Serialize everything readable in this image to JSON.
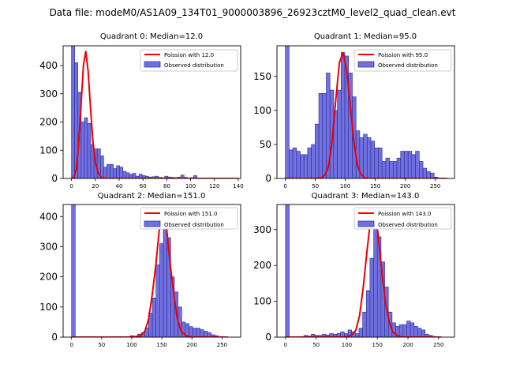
{
  "suptitle": "Data file: modeM0/AS1A09_134T01_9000003896_26923cztM0_level2_quad_clean.evt",
  "colors": {
    "bars": "#7070e0",
    "bar_edge": "#2a2a90",
    "poisson": "#ee0000"
  },
  "chart_data": [
    {
      "type": "bar",
      "title": "Quadrant 0: Median=12.0",
      "xlim": [
        -7,
        142
      ],
      "ylim": [
        0,
        470
      ],
      "xticks": [
        0,
        20,
        40,
        60,
        80,
        100,
        120,
        140
      ],
      "yticks": [
        0,
        100,
        200,
        300,
        400
      ],
      "bin_width": 2.7,
      "hist_x": [
        0,
        2.7,
        5.4,
        8.1,
        10.8,
        13.5,
        16.2,
        18.9,
        21.6,
        24.3,
        27,
        29.7,
        32.4,
        35.1,
        37.8,
        40.5,
        43.2,
        45.9,
        48.6,
        51.3,
        54,
        56.7,
        59.4,
        62.1,
        64.8,
        67.5,
        70.2,
        72.9,
        75.6,
        78.3,
        81,
        83.7,
        86.4,
        89.1,
        91.8,
        94.5,
        97.2,
        99.9,
        102.6,
        105.3,
        108,
        110.7,
        113.4,
        116.1,
        118.8,
        121.5,
        124.2,
        127,
        129.6,
        132.3,
        135
      ],
      "hist_y": [
        470,
        410,
        305,
        200,
        215,
        195,
        120,
        105,
        105,
        80,
        40,
        50,
        50,
        35,
        45,
        40,
        25,
        20,
        15,
        18,
        8,
        15,
        10,
        8,
        5,
        6,
        8,
        4,
        3,
        8,
        5,
        4,
        3,
        5,
        12,
        4,
        2,
        3,
        10,
        2,
        1,
        2,
        1,
        1,
        1,
        1,
        0,
        1,
        0,
        1,
        0
      ],
      "poisson_label": "Poission with 12.0",
      "poisson_x": [
        0,
        2,
        4,
        6,
        8,
        10,
        12,
        14,
        16,
        18,
        20,
        22,
        24,
        26,
        30,
        40,
        60,
        80,
        100,
        120,
        140
      ],
      "poisson_y": [
        0,
        5,
        30,
        120,
        260,
        400,
        450,
        380,
        250,
        130,
        60,
        25,
        8,
        2,
        0,
        0,
        0,
        0,
        0,
        0,
        0
      ],
      "observed_label": "Observed distribution"
    },
    {
      "type": "bar",
      "title": "Quadrant 1: Median=95.0",
      "xlim": [
        -14,
        282
      ],
      "ylim": [
        0,
        195
      ],
      "xticks": [
        0,
        50,
        100,
        150,
        200,
        250
      ],
      "yticks": [
        0,
        50,
        100,
        150
      ],
      "bin_width": 6.2,
      "hist_x": [
        0,
        6.2,
        12.4,
        18.6,
        24.8,
        31,
        37.2,
        43.4,
        49.6,
        55.8,
        62,
        68.2,
        74.4,
        80.6,
        86.8,
        93,
        99.2,
        105.4,
        111.6,
        117.8,
        124,
        130.2,
        136.4,
        142.6,
        148.8,
        155,
        161.2,
        167.4,
        173.6,
        179.8,
        186,
        192.2,
        198.4,
        204.6,
        210.8,
        217,
        223.2,
        229.4,
        235.6,
        241.8,
        248,
        254.2
      ],
      "hist_y": [
        195,
        42,
        45,
        40,
        35,
        35,
        45,
        50,
        80,
        125,
        125,
        155,
        130,
        100,
        130,
        185,
        180,
        155,
        120,
        70,
        60,
        65,
        60,
        55,
        45,
        45,
        25,
        30,
        25,
        25,
        30,
        40,
        40,
        40,
        35,
        40,
        25,
        15,
        10,
        8,
        2,
        0
      ],
      "poisson_label": "Poission with 95.0",
      "poisson_x": [
        0,
        50,
        60,
        66,
        72,
        78,
        84,
        90,
        96,
        102,
        108,
        114,
        120,
        126,
        132,
        140,
        150,
        200,
        270
      ],
      "poisson_y": [
        0,
        0,
        1,
        5,
        18,
        55,
        115,
        170,
        185,
        160,
        110,
        55,
        20,
        6,
        1,
        0,
        0,
        0,
        0
      ],
      "observed_label": "Observed distribution"
    },
    {
      "type": "bar",
      "title": "Quadrant 2: Median=151.0",
      "xlim": [
        -14,
        281
      ],
      "ylim": [
        0,
        440
      ],
      "xticks": [
        0,
        50,
        100,
        150,
        200,
        250
      ],
      "yticks": [
        0,
        100,
        200,
        300,
        400
      ],
      "bin_width": 6.1,
      "hist_x": [
        0,
        6.1,
        12.2,
        18.3,
        24.4,
        30.5,
        36.6,
        42.7,
        48.8,
        54.9,
        61,
        67.1,
        73.2,
        79.3,
        85.4,
        91.5,
        97.6,
        103.7,
        109.8,
        115.9,
        122,
        128.1,
        134.2,
        140.3,
        146.4,
        152.5,
        158.6,
        164.7,
        170.8,
        176.9,
        183,
        189.1,
        195.2,
        201.3,
        207.4,
        213.5,
        219.6,
        225.7,
        231.8,
        237.9,
        244,
        250.1,
        256.2,
        262.3
      ],
      "hist_y": [
        440,
        0,
        0,
        0,
        0,
        0,
        0,
        0,
        0,
        0,
        0,
        0,
        0,
        0,
        0,
        0,
        5,
        3,
        10,
        15,
        30,
        80,
        130,
        240,
        310,
        410,
        330,
        200,
        150,
        100,
        50,
        45,
        35,
        30,
        30,
        25,
        20,
        15,
        8,
        5,
        2,
        1,
        0,
        0
      ],
      "poisson_label": "Poission with 151.0",
      "poisson_x": [
        0,
        100,
        115,
        122,
        128,
        134,
        140,
        146,
        152,
        158,
        164,
        170,
        176,
        182,
        190,
        200,
        260
      ],
      "poisson_y": [
        0,
        0,
        5,
        20,
        60,
        140,
        240,
        360,
        420,
        360,
        240,
        140,
        60,
        20,
        5,
        0,
        0
      ],
      "observed_label": "Observed distribution"
    },
    {
      "type": "bar",
      "title": "Quadrant 3: Median=143.0",
      "xlim": [
        -14,
        276
      ],
      "ylim": [
        0,
        370
      ],
      "xticks": [
        0,
        50,
        100,
        150,
        200,
        250
      ],
      "yticks": [
        0,
        100,
        200,
        300
      ],
      "bin_width": 6.0,
      "hist_x": [
        0,
        6,
        12,
        18,
        24,
        30,
        36,
        42,
        48,
        54,
        60,
        66,
        72,
        78,
        84,
        90,
        96,
        102,
        108,
        114,
        120,
        126,
        132,
        138,
        144,
        150,
        156,
        162,
        168,
        174,
        180,
        186,
        192,
        198,
        204,
        210,
        216,
        222,
        228,
        234,
        240,
        246,
        252
      ],
      "hist_y": [
        370,
        0,
        0,
        0,
        0,
        5,
        3,
        8,
        5,
        5,
        8,
        6,
        10,
        8,
        10,
        15,
        10,
        20,
        15,
        10,
        25,
        70,
        130,
        220,
        340,
        280,
        210,
        140,
        70,
        40,
        30,
        35,
        35,
        45,
        40,
        30,
        25,
        20,
        8,
        5,
        2,
        1,
        0
      ],
      "poisson_label": "Poission with 143.0",
      "poisson_x": [
        0,
        95,
        108,
        115,
        121,
        127,
        133,
        139,
        145,
        151,
        157,
        163,
        169,
        175,
        182,
        190,
        255
      ],
      "poisson_y": [
        0,
        0,
        5,
        20,
        60,
        140,
        240,
        330,
        350,
        290,
        190,
        100,
        45,
        15,
        5,
        0,
        0
      ],
      "observed_label": "Observed distribution"
    }
  ]
}
